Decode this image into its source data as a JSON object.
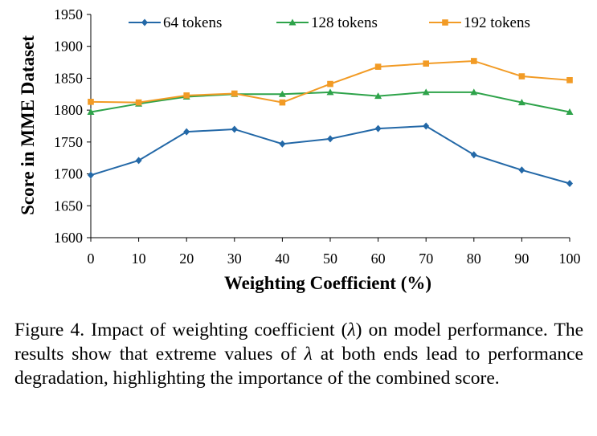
{
  "chart_data": {
    "type": "line",
    "x": [
      0,
      10,
      20,
      30,
      40,
      50,
      60,
      70,
      80,
      90,
      100
    ],
    "series": [
      {
        "name": "64 tokens",
        "color": "#2368a7",
        "marker": "diamond",
        "values": [
          1698,
          1721,
          1766,
          1770,
          1747,
          1755,
          1771,
          1775,
          1730,
          1706,
          1685
        ]
      },
      {
        "name": "128 tokens",
        "color": "#2ea34a",
        "marker": "triangle",
        "values": [
          1797,
          1810,
          1821,
          1825,
          1825,
          1828,
          1822,
          1828,
          1828,
          1812,
          1797
        ]
      },
      {
        "name": "192 tokens",
        "color": "#f29b25",
        "marker": "square",
        "values": [
          1813,
          1812,
          1823,
          1826,
          1812,
          1841,
          1868,
          1873,
          1877,
          1853,
          1847
        ]
      }
    ],
    "xlabel": "Weighting Coefficient (%)",
    "ylabel": "Score in MME Dataset",
    "xticks": [
      "0",
      "10",
      "20",
      "30",
      "40",
      "50",
      "60",
      "70",
      "80",
      "90",
      "100"
    ],
    "yticks": [
      "1600",
      "1650",
      "1700",
      "1750",
      "1800",
      "1850",
      "1900",
      "1950"
    ],
    "xlim": [
      0,
      100
    ],
    "ylim": [
      1600,
      1950
    ],
    "legend_position": "top"
  },
  "caption": {
    "prefix": "Figure 4.  Impact of weighting coefficient (",
    "lambda": "λ",
    "middle": ") on model performance.  The results show that extreme values of ",
    "suffix": " at both ends lead to performance degradation, highlighting the importance of the combined score."
  }
}
